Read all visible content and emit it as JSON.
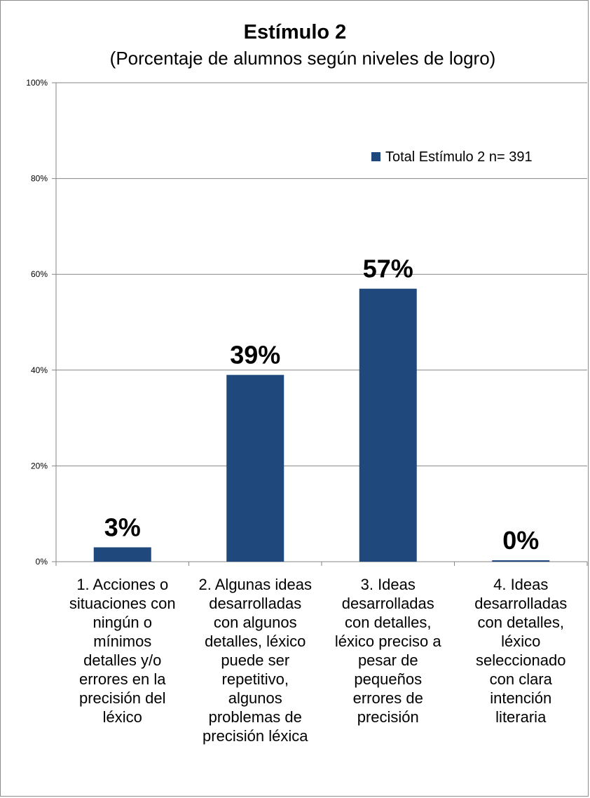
{
  "chart_data": {
    "type": "bar",
    "title": "Estímulo 2",
    "subtitle": "(Porcentaje de alumnos según niveles de logro)",
    "categories": [
      "1. Acciones o situaciones con ningún o mínimos detalles y/o errores en la precisión del léxico",
      "2. Algunas ideas desarrolladas con algunos detalles, léxico puede ser repetitivo, algunos problemas de precisión léxica",
      "3. Ideas desarrolladas con detalles, léxico preciso a pesar de pequeños errores de precisión",
      "4. Ideas desarrolladas con detalles, léxico seleccionado con clara intención literaria"
    ],
    "category_lines": [
      [
        "1. Acciones o",
        "situaciones con",
        "ningún o",
        "mínimos",
        "detalles y/o",
        "errores en la",
        "precisión del",
        "léxico"
      ],
      [
        "2. Algunas ideas",
        "desarrolladas",
        "con algunos",
        "detalles, léxico",
        "puede ser",
        "repetitivo,",
        "algunos",
        "problemas de",
        "precisión léxica"
      ],
      [
        "3. Ideas",
        "desarrolladas",
        "con detalles,",
        "léxico preciso a",
        "pesar de",
        "pequeños",
        "errores de",
        "precisión"
      ],
      [
        "4. Ideas",
        "desarrolladas",
        "con detalles,",
        "léxico",
        "seleccionado",
        "con clara",
        "intención",
        "literaria"
      ]
    ],
    "series": [
      {
        "name": "Total Estímulo 2 n= 391",
        "values": [
          3,
          39,
          57,
          0
        ],
        "color": "#1f497d"
      }
    ],
    "data_labels": [
      "3%",
      "39%",
      "57%",
      "0%"
    ],
    "yticks": [
      "0%",
      "20%",
      "40%",
      "60%",
      "80%",
      "100%"
    ],
    "ylim": [
      0,
      100
    ],
    "grid": true,
    "legend_position": "upper-right"
  }
}
